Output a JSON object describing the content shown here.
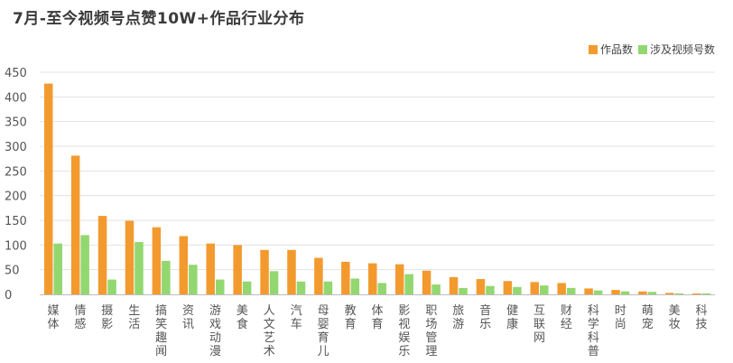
{
  "title": "7月-至今视频号点赞10W+作品行业分布",
  "colors": {
    "series1": "#f39a2e",
    "series2": "#93d770",
    "grid": "#e3e3e3",
    "axis": "#bdbdbd"
  },
  "chart_data": {
    "type": "bar",
    "title": "7月-至今视频号点赞10W+作品行业分布",
    "ylim": [
      0,
      450
    ],
    "yticks": [
      0,
      50,
      100,
      150,
      200,
      250,
      300,
      350,
      400,
      450
    ],
    "grid": true,
    "legend_position": "top-right",
    "categories": [
      "媒体",
      "情感",
      "摄影",
      "生活",
      "搞笑趣闻",
      "资讯",
      "游戏动漫",
      "美食",
      "人文艺术",
      "汽车",
      "母婴育儿",
      "教育",
      "体育",
      "影视娱乐",
      "职场管理",
      "旅游",
      "音乐",
      "健康",
      "互联网",
      "财经",
      "科学科普",
      "时尚",
      "萌宠",
      "美妆",
      "科技"
    ],
    "series": [
      {
        "name": "作品数",
        "values": [
          427,
          281,
          159,
          149,
          136,
          118,
          103,
          100,
          90,
          90,
          74,
          66,
          63,
          61,
          48,
          35,
          31,
          27,
          25,
          23,
          12,
          9,
          6,
          3,
          2
        ]
      },
      {
        "name": "涉及视频号数",
        "values": [
          103,
          120,
          30,
          106,
          68,
          60,
          30,
          26,
          47,
          26,
          26,
          32,
          23,
          41,
          20,
          13,
          17,
          15,
          18,
          13,
          8,
          6,
          5,
          2,
          2
        ]
      }
    ]
  }
}
